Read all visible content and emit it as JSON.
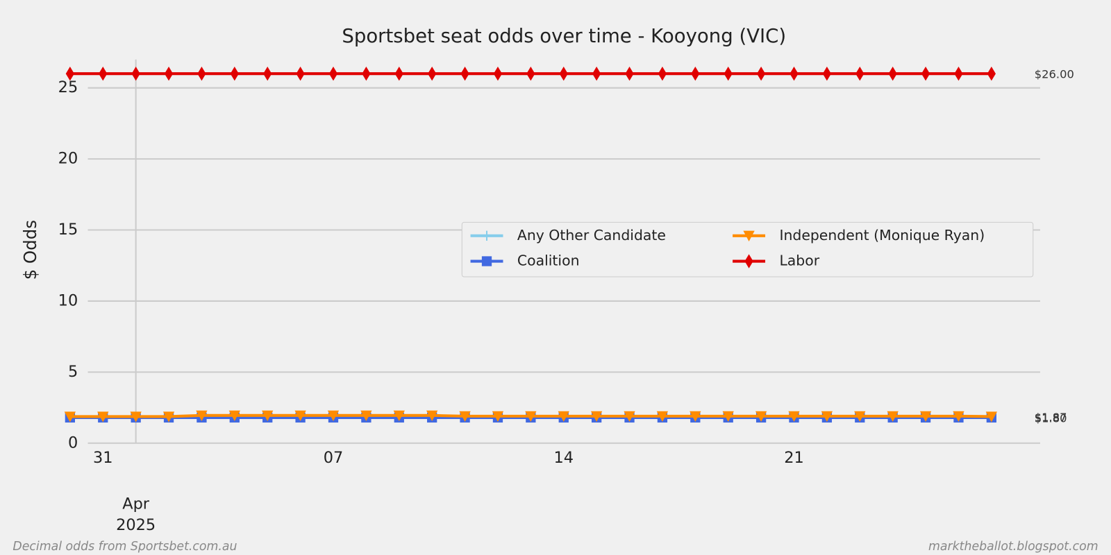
{
  "chart_data": {
    "type": "line",
    "title": "Sportsbet seat odds over time - Kooyong (VIC)",
    "y_label": "$ Odds",
    "footer_left": "Decimal odds from Sportsbet.com.au",
    "footer_right": "marktheballot.blogspot.com",
    "x": [
      "2025-03-30",
      "2025-03-31",
      "2025-04-01",
      "2025-04-02",
      "2025-04-03",
      "2025-04-04",
      "2025-04-05",
      "2025-04-06",
      "2025-04-07",
      "2025-04-08",
      "2025-04-09",
      "2025-04-10",
      "2025-04-11",
      "2025-04-12",
      "2025-04-13",
      "2025-04-14",
      "2025-04-15",
      "2025-04-16",
      "2025-04-17",
      "2025-04-18",
      "2025-04-19",
      "2025-04-20",
      "2025-04-21",
      "2025-04-22",
      "2025-04-23",
      "2025-04-24",
      "2025-04-25",
      "2025-04-26",
      "2025-04-27"
    ],
    "xlim": [
      "2025-03-30T13:00Z",
      "2025-04-28T11:30Z"
    ],
    "xticks": [
      {
        "value": "2025-03-31",
        "label": "31"
      },
      {
        "value": "2025-04-01",
        "label": "Apr 2025"
      },
      {
        "value": "2025-04-07",
        "label": "07"
      },
      {
        "value": "2025-04-14",
        "label": "14"
      },
      {
        "value": "2025-04-21",
        "label": "21"
      }
    ],
    "ylim": [
      0,
      27
    ],
    "yticks": [
      0,
      5,
      10,
      15,
      20,
      25
    ],
    "grid": true,
    "legend": "center right",
    "series": [
      {
        "name": "Any Other Candidate",
        "color": "#87ceeb",
        "marker": "plus",
        "values": [
          null,
          null,
          null,
          null,
          null,
          null,
          null,
          null,
          null,
          null,
          null,
          null,
          null,
          null,
          null,
          null,
          null,
          null,
          null,
          null,
          null,
          null,
          null,
          null,
          null,
          null,
          null,
          null,
          null
        ]
      },
      {
        "name": "Coalition",
        "color": "#4169e1",
        "marker": "square",
        "values": [
          1.8,
          1.8,
          1.8,
          1.8,
          1.8,
          1.8,
          1.8,
          1.8,
          1.8,
          1.8,
          1.8,
          1.8,
          1.8,
          1.8,
          1.8,
          1.8,
          1.8,
          1.8,
          1.8,
          1.8,
          1.8,
          1.8,
          1.8,
          1.8,
          1.8,
          1.8,
          1.8,
          1.8,
          1.8
        ],
        "value_labels": [
          null,
          null,
          null,
          null,
          null,
          null,
          null,
          null,
          null,
          null,
          null,
          null,
          null,
          null,
          null,
          null,
          null,
          null,
          null,
          null,
          null,
          null,
          null,
          null,
          null,
          null,
          null,
          null,
          "$1.80"
        ]
      },
      {
        "name": "Independent (Monique Ryan)",
        "color": "#ff8c00",
        "marker": "triangle",
        "values": [
          1.87,
          1.87,
          1.87,
          1.87,
          1.95,
          1.95,
          1.95,
          1.95,
          1.95,
          1.95,
          1.95,
          1.95,
          1.9,
          1.9,
          1.9,
          1.9,
          1.9,
          1.9,
          1.9,
          1.9,
          1.9,
          1.9,
          1.9,
          1.9,
          1.9,
          1.9,
          1.9,
          1.9,
          1.87
        ],
        "value_labels": [
          null,
          null,
          null,
          null,
          null,
          null,
          null,
          null,
          null,
          null,
          null,
          null,
          null,
          null,
          null,
          null,
          null,
          null,
          null,
          null,
          null,
          null,
          null,
          null,
          null,
          null,
          null,
          null,
          "$1.87"
        ]
      },
      {
        "name": "Labor",
        "color": "#e00000",
        "marker": "diamond",
        "values": [
          26,
          26,
          26,
          26,
          26,
          26,
          26,
          26,
          26,
          26,
          26,
          26,
          26,
          26,
          26,
          26,
          26,
          26,
          26,
          26,
          26,
          26,
          26,
          26,
          26,
          26,
          26,
          26,
          26
        ],
        "value_labels": [
          null,
          null,
          null,
          null,
          null,
          null,
          null,
          null,
          null,
          null,
          null,
          null,
          null,
          null,
          null,
          null,
          null,
          null,
          null,
          null,
          null,
          null,
          null,
          null,
          null,
          null,
          null,
          null,
          "$26.00"
        ]
      }
    ]
  }
}
